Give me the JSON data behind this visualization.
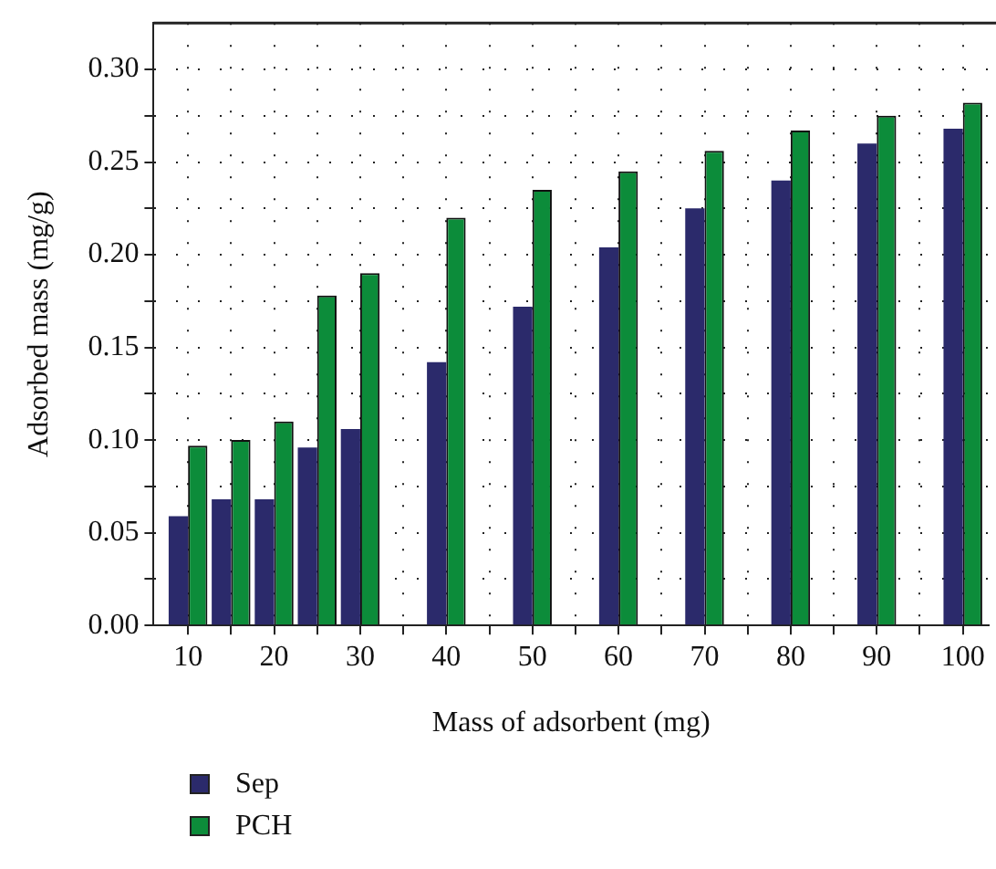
{
  "chart_data": {
    "type": "bar",
    "xlabel": "Mass of adsorbent (mg)",
    "ylabel": "Adsorbed mass (mg/g)",
    "x": [
      10,
      15,
      20,
      25,
      30,
      40,
      50,
      60,
      70,
      80,
      90,
      100
    ],
    "series": [
      {
        "name": "Sep",
        "color": "#2b2a6b",
        "values": [
          0.059,
          0.068,
          0.068,
          0.096,
          0.106,
          0.142,
          0.172,
          0.204,
          0.225,
          0.24,
          0.26,
          0.268
        ]
      },
      {
        "name": "PCH",
        "color": "#0c8c3a",
        "values": [
          0.097,
          0.1,
          0.11,
          0.178,
          0.19,
          0.22,
          0.235,
          0.245,
          0.256,
          0.267,
          0.275,
          0.282
        ]
      }
    ],
    "xlim": [
      6,
      103
    ],
    "xticks": [
      10,
      {
        "value": 15,
        "label": null
      },
      20,
      {
        "value": 25,
        "label": null
      },
      30,
      {
        "value": 35,
        "label": null
      },
      40,
      {
        "value": 45,
        "label": null
      },
      50,
      {
        "value": 55,
        "label": null
      },
      60,
      {
        "value": 65,
        "label": null
      },
      70,
      {
        "value": 75,
        "label": null
      },
      80,
      {
        "value": 85,
        "label": null
      },
      90,
      {
        "value": 95,
        "label": null
      },
      100
    ],
    "ylim": [
      0,
      0.325
    ],
    "yticks": [
      {
        "value": 0,
        "label": "0.00"
      },
      {
        "value": 0.025,
        "label": null
      },
      0.05,
      {
        "value": 0.075,
        "label": null
      },
      {
        "value": 0.1,
        "label": "0.10"
      },
      {
        "value": 0.125,
        "label": null
      },
      0.15,
      {
        "value": 0.175,
        "label": null
      },
      {
        "value": 0.2,
        "label": "0.20"
      },
      {
        "value": 0.225,
        "label": null
      },
      0.25,
      {
        "value": 0.275,
        "label": null
      },
      {
        "value": 0.3,
        "label": "0.30"
      }
    ],
    "grid": true,
    "legend": "bottom left"
  }
}
